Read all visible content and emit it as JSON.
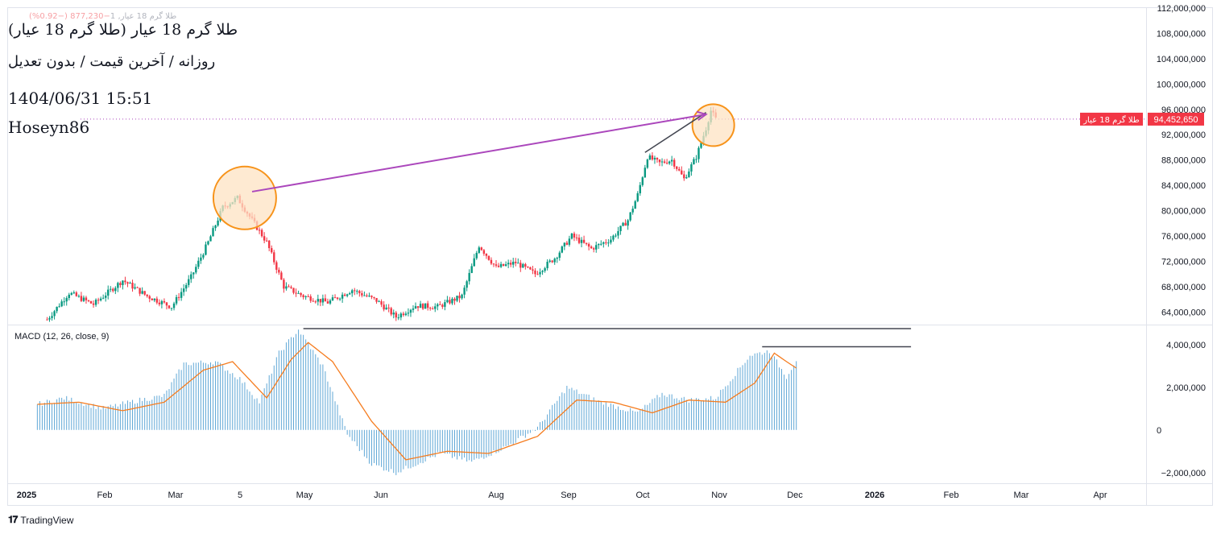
{
  "header": {
    "small_line": "طلا گرم 18 عیار, 1",
    "small_change": "−877,230 (−0.92%)",
    "title": "طلا گرم 18 عیار (طلا گرم 18 عیار)",
    "meta": "روزانه / آخرین قیمت / بدون تعدیل",
    "datetime": "1404/06/31 15:51",
    "author": "Hoseyn86"
  },
  "price_tag": {
    "symbol": "طلا گرم 18 عیار",
    "value": "94,452,650",
    "color": "#f23645"
  },
  "macd_label": "MACD (12, 26, close, 9)",
  "branding": "TradingView",
  "colors": {
    "up": "#089981",
    "down": "#f23645",
    "histogram": "#5fa7d6",
    "signal": "#f57c1f",
    "arrow": "#ab47bc",
    "circle_stroke": "#f7931a",
    "circle_fill": "#fde3c3",
    "trendline": "#434651"
  },
  "chart_data": [
    {
      "type": "candlestick",
      "title": "طلا گرم 18 عیار",
      "ylim": [
        62000000,
        112000000
      ],
      "y_ticks": [
        "112,000,000",
        "108,000,000",
        "104,000,000",
        "100,000,000",
        "96,000,000",
        "92,000,000",
        "88,000,000",
        "84,000,000",
        "80,000,000",
        "76,000,000",
        "72,000,000",
        "68,000,000",
        "64,000,000"
      ],
      "x_tick_labels": [
        "2025",
        "Feb",
        "Mar",
        "5",
        "May",
        "Jun",
        "Aug",
        "Sep",
        "Oct",
        "Nov",
        "Dec",
        "2026",
        "Feb",
        "Mar",
        "Apr"
      ],
      "last_price": 94452650,
      "close_path": [
        [
          "2025-01-05",
          62800000
        ],
        [
          "2025-01-14",
          67000000
        ],
        [
          "2025-01-24",
          65200000
        ],
        [
          "2025-02-05",
          69000000
        ],
        [
          "2025-02-15",
          66500000
        ],
        [
          "2025-02-25",
          64800000
        ],
        [
          "2025-03-05",
          69500000
        ],
        [
          "2025-03-12",
          75000000
        ],
        [
          "2025-03-18",
          80500000
        ],
        [
          "2025-03-24",
          82000000
        ],
        [
          "2025-03-30",
          78500000
        ],
        [
          "2025-04-05",
          75000000
        ],
        [
          "2025-04-12",
          68000000
        ],
        [
          "2025-04-20",
          66500000
        ],
        [
          "2025-04-30",
          65500000
        ],
        [
          "2025-05-10",
          67500000
        ],
        [
          "2025-05-20",
          65800000
        ],
        [
          "2025-05-28",
          63200000
        ],
        [
          "2025-06-05",
          65000000
        ],
        [
          "2025-06-14",
          64800000
        ],
        [
          "2025-06-24",
          66500000
        ],
        [
          "2025-07-01",
          74500000
        ],
        [
          "2025-07-08",
          71000000
        ],
        [
          "2025-07-16",
          71800000
        ],
        [
          "2025-07-24",
          70000000
        ],
        [
          "2025-08-01",
          72500000
        ],
        [
          "2025-08-08",
          76000000
        ],
        [
          "2025-08-16",
          74000000
        ],
        [
          "2025-08-24",
          75500000
        ],
        [
          "2025-08-31",
          78500000
        ],
        [
          "2025-09-04",
          82500000
        ],
        [
          "2025-09-08",
          88500000
        ],
        [
          "2025-09-13",
          87500000
        ],
        [
          "2025-09-18",
          88000000
        ],
        [
          "2025-09-23",
          85000000
        ],
        [
          "2025-09-28",
          88500000
        ],
        [
          "2025-10-02",
          93000000
        ],
        [
          "2025-10-04",
          95800000
        ],
        [
          "2025-10-06",
          94452650
        ]
      ],
      "annotations": {
        "arrow": {
          "from": [
            "2025-03-30",
            83000000
          ],
          "to": [
            "2025-10-02",
            95200000
          ]
        },
        "circles": [
          {
            "center": [
              "2025-03-27",
              82000000
            ]
          },
          {
            "center": [
              "2025-10-05",
              93500000
            ]
          }
        ],
        "trendline": {
          "from": [
            "2025-09-07",
            89200000
          ],
          "to": [
            "2025-10-02",
            95500000
          ]
        }
      }
    },
    {
      "type": "bar",
      "title": "MACD (12, 26, close, 9)",
      "ylim": [
        -2500000,
        4900000
      ],
      "y_ticks": [
        "4,000,000",
        "2,000,000",
        "0",
        "−2,000,000"
      ],
      "histogram_path": [
        [
          "2025-01-01",
          1200000
        ],
        [
          "2025-01-12",
          1500000
        ],
        [
          "2025-01-28",
          1000000
        ],
        [
          "2025-02-12",
          1400000
        ],
        [
          "2025-02-22",
          1600000
        ],
        [
          "2025-03-02",
          3100000
        ],
        [
          "2025-03-15",
          3200000
        ],
        [
          "2025-03-25",
          2400000
        ],
        [
          "2025-04-02",
          1300000
        ],
        [
          "2025-04-10",
          3600000
        ],
        [
          "2025-04-18",
          4700000
        ],
        [
          "2025-04-28",
          3000000
        ],
        [
          "2025-05-08",
          -200000
        ],
        [
          "2025-05-18",
          -1600000
        ],
        [
          "2025-05-28",
          -2000000
        ],
        [
          "2025-06-15",
          -1100000
        ],
        [
          "2025-06-28",
          -1500000
        ],
        [
          "2025-07-12",
          -800000
        ],
        [
          "2025-07-25",
          100000
        ],
        [
          "2025-08-06",
          2000000
        ],
        [
          "2025-08-20",
          1300000
        ],
        [
          "2025-09-04",
          800000
        ],
        [
          "2025-09-14",
          1700000
        ],
        [
          "2025-09-25",
          1400000
        ],
        [
          "2025-10-06",
          1500000
        ],
        [
          "2025-10-20",
          3500000
        ],
        [
          "2025-10-28",
          3700000
        ],
        [
          "2025-11-04",
          2500000
        ],
        [
          "2025-11-08",
          3300000
        ]
      ],
      "signal_path": [
        [
          "2025-01-01",
          1200000
        ],
        [
          "2025-01-18",
          1300000
        ],
        [
          "2025-02-05",
          900000
        ],
        [
          "2025-02-22",
          1300000
        ],
        [
          "2025-03-10",
          2800000
        ],
        [
          "2025-03-22",
          3200000
        ],
        [
          "2025-04-05",
          1500000
        ],
        [
          "2025-04-15",
          3300000
        ],
        [
          "2025-04-22",
          4100000
        ],
        [
          "2025-05-02",
          3200000
        ],
        [
          "2025-05-18",
          400000
        ],
        [
          "2025-06-01",
          -1400000
        ],
        [
          "2025-06-18",
          -1000000
        ],
        [
          "2025-07-05",
          -1100000
        ],
        [
          "2025-07-25",
          -300000
        ],
        [
          "2025-08-10",
          1400000
        ],
        [
          "2025-08-25",
          1300000
        ],
        [
          "2025-09-10",
          800000
        ],
        [
          "2025-09-25",
          1400000
        ],
        [
          "2025-10-10",
          1300000
        ],
        [
          "2025-10-22",
          2200000
        ],
        [
          "2025-10-30",
          3600000
        ],
        [
          "2025-11-04",
          3200000
        ],
        [
          "2025-11-08",
          2900000
        ]
      ],
      "annotations": {
        "levels": [
          {
            "value": 4750000,
            "from": "2025-04-20",
            "to": "2025-12-25"
          },
          {
            "value": 3900000,
            "from": "2025-10-25",
            "to": "2025-12-25"
          }
        ]
      }
    }
  ]
}
